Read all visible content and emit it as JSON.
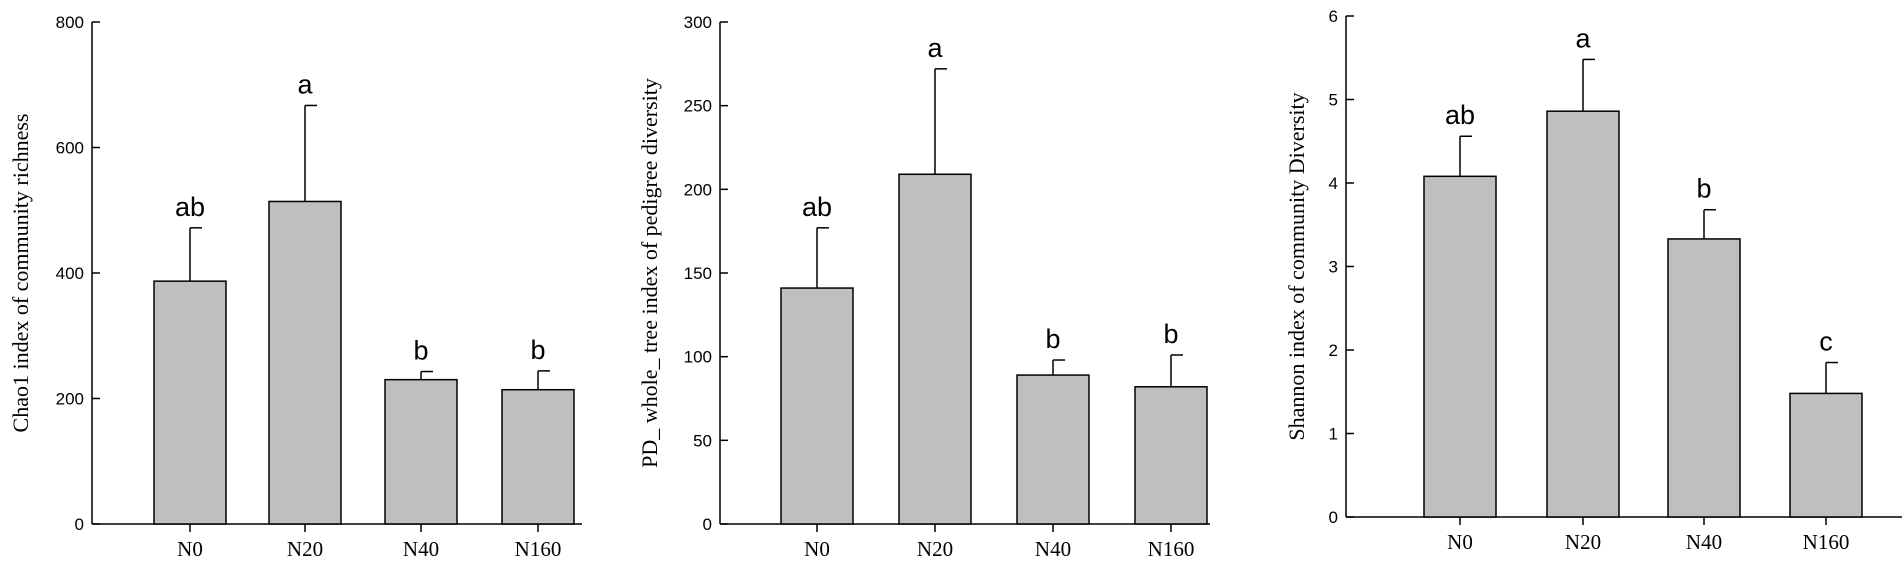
{
  "chart_data": [
    {
      "type": "bar",
      "ylabel": "Chao1 index of community richness",
      "ylim": [
        0,
        800
      ],
      "yticks": [
        0,
        200,
        400,
        600,
        800
      ],
      "categories": [
        "N0",
        "N20",
        "N40",
        "N160"
      ],
      "values": [
        387,
        514,
        230,
        214
      ],
      "errors": [
        85,
        153,
        13,
        30
      ],
      "significance": [
        "ab",
        "a",
        "b",
        "b"
      ],
      "bar_color": "#bfbfbf"
    },
    {
      "type": "bar",
      "ylabel": "PD_ whole_ tree  index of pedigree diversity",
      "ylim": [
        0,
        300
      ],
      "yticks": [
        0,
        50,
        100,
        150,
        200,
        250,
        300
      ],
      "categories": [
        "N0",
        "N20",
        "N40",
        "N160"
      ],
      "values": [
        141,
        209,
        89,
        82
      ],
      "errors": [
        36,
        63,
        9,
        19
      ],
      "significance": [
        "ab",
        "a",
        "b",
        "b"
      ],
      "bar_color": "#bfbfbf"
    },
    {
      "type": "bar",
      "ylabel": "Shannon index of community Diversity",
      "ylim": [
        0,
        6
      ],
      "yticks": [
        0,
        1,
        2,
        3,
        4,
        5,
        6
      ],
      "categories": [
        "N0",
        "N20",
        "N40",
        "N160"
      ],
      "values": [
        4.08,
        4.86,
        3.33,
        1.48
      ],
      "errors": [
        0.48,
        0.62,
        0.35,
        0.37
      ],
      "significance": [
        "ab",
        "a",
        "b",
        "c"
      ],
      "bar_color": "#bfbfbf"
    }
  ]
}
